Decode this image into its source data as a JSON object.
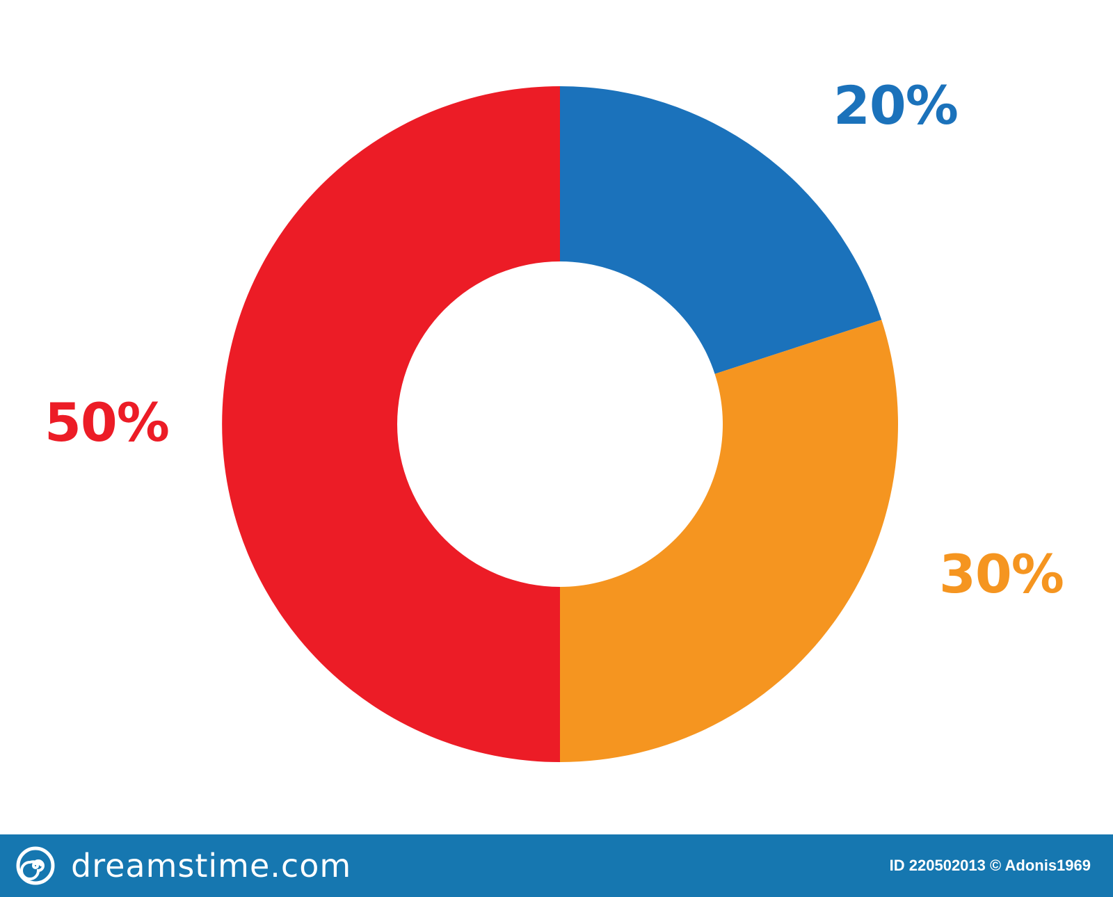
{
  "chart_data": {
    "type": "pie",
    "variant": "donut",
    "title": "",
    "categories": [
      "blue",
      "orange",
      "red"
    ],
    "values": [
      20,
      30,
      50
    ],
    "labels": [
      "20%",
      "30%",
      "50%"
    ],
    "colors": [
      "#1b72bb",
      "#f59520",
      "#ec1c26"
    ],
    "start_angle": "top, clockwise",
    "legend": "none"
  },
  "footer": {
    "brand": "dreamstime.com",
    "credit": "ID 220502013 © Adonis1969",
    "background": "#1677b0"
  },
  "watermark": "dreamstime"
}
